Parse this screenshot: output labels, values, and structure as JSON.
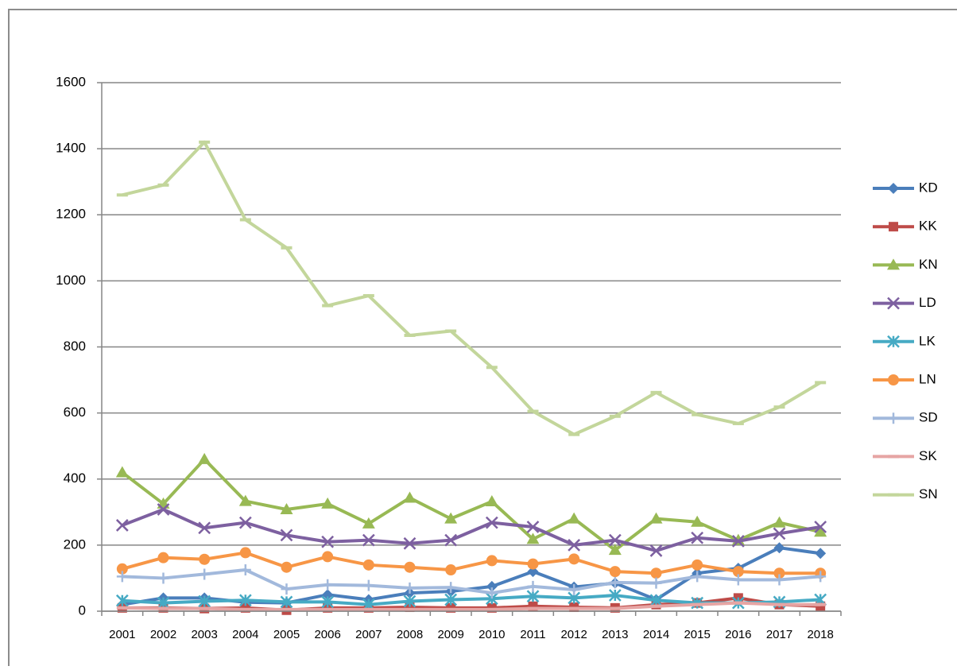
{
  "chart_data": {
    "type": "line",
    "categories": [
      "2001",
      "2002",
      "2003",
      "2004",
      "2005",
      "2006",
      "2007",
      "2008",
      "2009",
      "2010",
      "2011",
      "2012",
      "2013",
      "2014",
      "2015",
      "2016",
      "2017",
      "2018"
    ],
    "ylim": [
      0,
      1600
    ],
    "yticks": [
      0,
      200,
      400,
      600,
      800,
      1000,
      1200,
      1400,
      1600
    ],
    "grid": true,
    "legend": "right",
    "series": [
      {
        "name": "KD",
        "color": "#4a7ebb",
        "marker": "diamond",
        "values": [
          20,
          40,
          40,
          27,
          25,
          50,
          35,
          55,
          60,
          75,
          120,
          73,
          85,
          35,
          115,
          130,
          192,
          175
        ]
      },
      {
        "name": "KK",
        "color": "#be4b48",
        "marker": "square",
        "values": [
          10,
          10,
          8,
          10,
          3,
          10,
          10,
          12,
          10,
          10,
          15,
          12,
          10,
          20,
          25,
          40,
          20,
          15
        ]
      },
      {
        "name": "KN",
        "color": "#98b954",
        "marker": "triangle",
        "values": [
          420,
          325,
          460,
          333,
          308,
          325,
          265,
          343,
          280,
          332,
          218,
          280,
          185,
          280,
          270,
          215,
          268,
          240
        ]
      },
      {
        "name": "LD",
        "color": "#7d60a0",
        "marker": "x",
        "values": [
          260,
          308,
          252,
          268,
          230,
          210,
          215,
          205,
          215,
          268,
          255,
          200,
          215,
          183,
          222,
          212,
          235,
          255
        ]
      },
      {
        "name": "LK",
        "color": "#46aac4",
        "marker": "star",
        "values": [
          32,
          25,
          30,
          33,
          28,
          28,
          20,
          30,
          35,
          38,
          45,
          40,
          48,
          33,
          25,
          25,
          28,
          35
        ]
      },
      {
        "name": "LN",
        "color": "#f79646",
        "marker": "circle",
        "values": [
          128,
          162,
          157,
          177,
          133,
          165,
          140,
          133,
          125,
          153,
          143,
          158,
          120,
          115,
          140,
          120,
          115,
          115
        ]
      },
      {
        "name": "SD",
        "color": "#a2b9dc",
        "marker": "plus",
        "values": [
          105,
          100,
          112,
          125,
          67,
          80,
          78,
          70,
          72,
          55,
          75,
          65,
          87,
          85,
          105,
          95,
          95,
          105
        ]
      },
      {
        "name": "SK",
        "color": "#e6a5a4",
        "marker": "dash",
        "values": [
          10,
          8,
          8,
          5,
          5,
          5,
          5,
          5,
          5,
          5,
          8,
          8,
          8,
          15,
          20,
          25,
          20,
          20
        ]
      },
      {
        "name": "SN",
        "color": "#c3d69b",
        "marker": "dash",
        "values": [
          1260,
          1290,
          1420,
          1185,
          1100,
          925,
          955,
          835,
          848,
          738,
          605,
          535,
          590,
          662,
          595,
          568,
          618,
          692
        ]
      }
    ]
  }
}
